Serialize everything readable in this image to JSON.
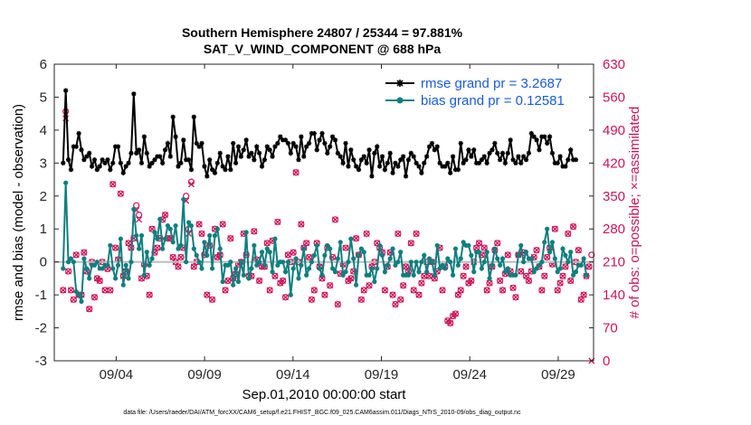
{
  "chart_data": {
    "type": "line",
    "title": "Southern Hemisphere 24807 / 25344 = 97.881%",
    "subtitle": "SAT_V_WIND_COMPONENT @ 688 hPa",
    "xlabel": "Sep.01,2010 00:00:00 start",
    "ylabel": "rmse and bias (model - observation)",
    "ylabel_right": "# of obs: o=possible; ×=assimilated",
    "footnote": "data file: /Users/raeder/DAI/ATM_forcXX/CAM6_setup/f.e21.FHIST_BGC.f09_025.CAM6assim.011/Diags_NTrS_2010-09/obs_diag_output.nc",
    "ylim": [
      -3,
      6
    ],
    "ylim_right": [
      0,
      630
    ],
    "xlim": [
      0.5,
      31.0
    ],
    "yticks": [
      -3,
      -2,
      -1,
      0,
      1,
      2,
      3,
      4,
      5,
      6
    ],
    "yticks_right": [
      0,
      70,
      140,
      210,
      280,
      350,
      420,
      490,
      560,
      630
    ],
    "xtick_values": [
      4,
      9,
      14,
      19,
      24,
      29
    ],
    "xtick_labels": [
      "09/04",
      "09/09",
      "09/14",
      "09/19",
      "09/24",
      "09/29"
    ],
    "zero_line": 0,
    "colors": {
      "rmse": "#000000",
      "bias": "#0f7f7f",
      "obs": "#cc1559",
      "legend_text": "#1a5bd8",
      "zero": "#bdbdbd"
    },
    "series": [
      {
        "name": "rmse",
        "legend": "rmse grand pr = 3.2687",
        "marker": "star",
        "values": [
          3.0,
          5.2,
          3.1,
          2.8,
          3.5,
          3.5,
          3.9,
          3.4,
          3.1,
          3.2,
          3.3,
          2.9,
          3.1,
          2.8,
          2.9,
          3.1,
          3.0,
          3.1,
          2.8,
          3.0,
          3.5,
          3.5,
          3.0,
          2.7,
          2.9,
          3.0,
          3.3,
          5.1,
          3.3,
          3.4,
          3.0,
          3.8,
          3.3,
          2.9,
          3.0,
          3.1,
          3.2,
          3.2,
          3.0,
          3.4,
          3.6,
          3.2,
          4.4,
          3.8,
          2.9,
          3.0,
          3.7,
          3.1,
          3.1,
          2.8,
          4.4,
          3.6,
          3.5,
          3.6,
          2.9,
          2.6,
          3.1,
          2.8,
          2.7,
          3.0,
          3.3,
          2.9,
          2.8,
          3.2,
          2.8,
          3.6,
          3.0,
          3.5,
          3.2,
          3.4,
          3.7,
          3.2,
          3.3,
          3.1,
          3.5,
          3.3,
          2.9,
          3.1,
          3.5,
          3.4,
          3.2,
          3.5,
          3.6,
          3.8,
          3.7,
          3.7,
          3.6,
          3.3,
          3.6,
          3.5,
          3.1,
          3.8,
          3.2,
          3.5,
          3.6,
          3.9,
          3.9,
          3.4,
          3.7,
          3.9,
          3.6,
          3.3,
          3.5,
          3.8,
          3.7,
          3.3,
          3.2,
          3.0,
          3.6,
          2.9,
          3.4,
          3.1,
          2.9,
          2.8,
          3.1,
          3.2,
          3.0,
          3.4,
          2.6,
          3.3,
          3.5,
          2.9,
          3.2,
          2.8,
          3.0,
          3.3,
          2.7,
          3.0,
          2.9,
          3.1,
          3.2,
          2.6,
          3.1,
          3.3,
          3.2,
          3.0,
          2.9,
          2.7,
          3.0,
          3.2,
          3.5,
          3.6,
          3.4,
          3.5,
          3.0,
          2.9,
          2.9,
          3.0,
          2.7,
          3.2,
          2.8,
          2.8,
          3.6,
          3.0,
          3.1,
          3.4,
          3.2,
          3.4,
          3.0,
          3.0,
          3.1,
          3.2,
          3.0,
          3.3,
          3.4,
          3.6,
          3.3,
          3.1,
          3.3,
          3.0,
          3.3,
          3.7,
          3.1,
          3.0,
          3.2,
          3.0,
          3.2,
          3.1,
          3.3,
          3.9,
          3.8,
          3.7,
          3.4,
          3.8,
          3.8,
          3.6,
          3.8,
          3.3,
          3.0,
          3.0,
          3.2,
          2.9,
          2.9,
          3.1,
          3.4,
          3.1,
          3.1
        ]
      },
      {
        "name": "bias",
        "legend": "bias grand pr = 0.12581",
        "marker": "dot",
        "values": [
          -0.2,
          2.4,
          0.0,
          0.1,
          0.0,
          -0.9,
          -1.0,
          -1.2,
          0.1,
          -0.2,
          -0.5,
          -0.1,
          -0.1,
          0.0,
          -0.2,
          -0.2,
          -0.1,
          -0.1,
          0.5,
          -0.2,
          -0.5,
          -0.1,
          0.7,
          -0.7,
          -0.1,
          -0.5,
          0.0,
          1.6,
          0.8,
          0.4,
          0.8,
          -0.4,
          0.3,
          -0.1,
          0.1,
          0.9,
          0.7,
          1.3,
          0.4,
          0.7,
          1.1,
          1.0,
          0.6,
          1.1,
          0.4,
          0.5,
          1.9,
          0.0,
          1.2,
          1.1,
          0.4,
          0.2,
          0.0,
          -0.2,
          0.6,
          0.2,
          0.8,
          -0.2,
          0.8,
          1.0,
          0.4,
          -0.6,
          -0.1,
          -0.1,
          0.0,
          -0.7,
          -0.2,
          -0.6,
          0.0,
          -0.4,
          0.9,
          -0.5,
          -0.2,
          0.5,
          -0.1,
          0.0,
          0.3,
          -0.1,
          0.4,
          0.3,
          -0.3,
          0.7,
          -0.1,
          0.0,
          0.0,
          -0.3,
          0.0,
          -1.0,
          -0.2,
          0.1,
          -0.5,
          -0.1,
          0.4,
          -0.4,
          -0.2,
          0.0,
          0.2,
          0.5,
          -0.2,
          -0.4,
          0.2,
          0.5,
          0.4,
          -0.2,
          -0.3,
          0.1,
          0.6,
          -0.4,
          -0.3,
          0.0,
          0.7,
          0.1,
          -0.7,
          0.2,
          0.4,
          0.3,
          -0.4,
          -0.4,
          -0.2,
          -0.6,
          -0.2,
          0.5,
          0.2,
          -0.3,
          -0.1,
          0.1,
          0.4,
          -0.1,
          0.0,
          0.3,
          -0.4,
          -0.4,
          -0.4,
          0.0,
          -0.4,
          0.0,
          -0.3,
          0.0,
          0.2,
          -0.3,
          0.1,
          0.0,
          -0.4,
          0.5,
          -0.2,
          -0.1,
          -0.2,
          0.1,
          0.0,
          -0.4,
          0.4,
          -0.1,
          0.1,
          0.6,
          0.5,
          0.5,
          0.2,
          -0.3,
          0.3,
          0.3,
          -0.2,
          0.0,
          0.3,
          -0.5,
          -0.1,
          0.4,
          0.1,
          -0.1,
          0.1,
          -0.3,
          -0.2,
          -0.4,
          -0.4,
          -0.4,
          0.2,
          0.5,
          0.0,
          0.3,
          0.1,
          0.1,
          -0.3,
          -0.2,
          -0.1,
          0.0,
          0.6,
          1.0,
          0.3,
          0.6,
          0.1,
          -0.3,
          -0.2,
          0.4,
          0.2,
          0.0,
          0.3,
          -0.4,
          -0.3,
          -0.1,
          -0.1,
          0.1,
          -0.4
        ]
      },
      {
        "name": "obs_possible",
        "marker": "circle",
        "values": [
          150,
          530,
          190,
          150,
          130,
          225,
          140,
          140,
          230,
          190,
          110,
          210,
          135,
          175,
          170,
          210,
          150,
          195,
          150,
          375,
          240,
          215,
          355,
          180,
          190,
          250,
          240,
          260,
          330,
          310,
          175,
          205,
          180,
          140,
          280,
          230,
          240,
          260,
          300,
          310,
          260,
          260,
          220,
          210,
          200,
          220,
          240,
          350,
          280,
          380,
          200,
          210,
          290,
          270,
          225,
          140,
          245,
          130,
          280,
          220,
          225,
          290,
          150,
          170,
          260,
          175,
          185,
          205,
          210,
          270,
          225,
          180,
          180,
          275,
          215,
          170,
          200,
          200,
          250,
          150,
          255,
          180,
          295,
          165,
          170,
          135,
          225,
          210,
          230,
          400,
          210,
          290,
          240,
          250,
          220,
          130,
          150,
          250,
          200,
          175,
          140,
          240,
          160,
          220,
          300,
          120,
          185,
          205,
          240,
          170,
          175,
          190,
          260,
          225,
          130,
          150,
          270,
          160,
          200,
          210,
          250,
          240,
          230,
          150,
          200,
          230,
          140,
          120,
          270,
          130,
          160,
          200,
          190,
          250,
          150,
          270,
          140,
          165,
          180,
          210,
          180,
          210,
          175,
          190,
          240,
          150,
          200,
          85,
          80,
          95,
          100,
          140,
          150,
          180,
          200,
          165,
          170,
          210,
          240,
          250,
          225,
          240,
          150,
          165,
          200,
          235,
          250,
          170,
          150,
          185,
          225,
          190,
          155,
          135,
          225,
          190,
          230,
          180,
          170,
          190,
          220,
          235,
          200,
          150,
          180,
          220,
          240,
          205,
          280,
          150,
          165,
          180,
          200,
          270,
          170,
          285,
          210,
          235,
          130,
          140,
          180,
          200,
          225
        ]
      },
      {
        "name": "obs_assimilated",
        "marker": "x",
        "values": [
          150,
          515,
          190,
          150,
          130,
          225,
          140,
          140,
          230,
          190,
          110,
          210,
          135,
          175,
          170,
          210,
          150,
          195,
          150,
          375,
          240,
          215,
          355,
          180,
          190,
          250,
          240,
          260,
          320,
          300,
          175,
          205,
          180,
          140,
          280,
          230,
          240,
          260,
          300,
          310,
          260,
          260,
          220,
          210,
          200,
          220,
          240,
          340,
          270,
          375,
          200,
          210,
          290,
          270,
          225,
          140,
          245,
          130,
          280,
          220,
          225,
          290,
          150,
          170,
          260,
          175,
          185,
          205,
          210,
          270,
          225,
          180,
          180,
          275,
          215,
          170,
          200,
          200,
          250,
          150,
          255,
          180,
          295,
          165,
          170,
          135,
          225,
          210,
          230,
          400,
          210,
          290,
          240,
          250,
          220,
          130,
          150,
          250,
          200,
          175,
          140,
          240,
          160,
          220,
          300,
          120,
          185,
          205,
          240,
          170,
          175,
          190,
          260,
          225,
          130,
          150,
          270,
          160,
          200,
          210,
          250,
          240,
          230,
          150,
          200,
          230,
          140,
          120,
          270,
          130,
          160,
          200,
          190,
          250,
          150,
          270,
          140,
          165,
          180,
          210,
          180,
          210,
          175,
          190,
          240,
          150,
          200,
          85,
          80,
          95,
          100,
          140,
          150,
          180,
          200,
          165,
          170,
          210,
          240,
          250,
          225,
          240,
          150,
          165,
          200,
          235,
          250,
          170,
          150,
          185,
          225,
          190,
          155,
          135,
          225,
          190,
          230,
          180,
          170,
          190,
          220,
          235,
          200,
          150,
          180,
          220,
          240,
          205,
          280,
          150,
          165,
          180,
          200,
          270,
          170,
          285,
          210,
          235,
          130,
          140,
          180,
          200,
          0
        ]
      }
    ]
  }
}
